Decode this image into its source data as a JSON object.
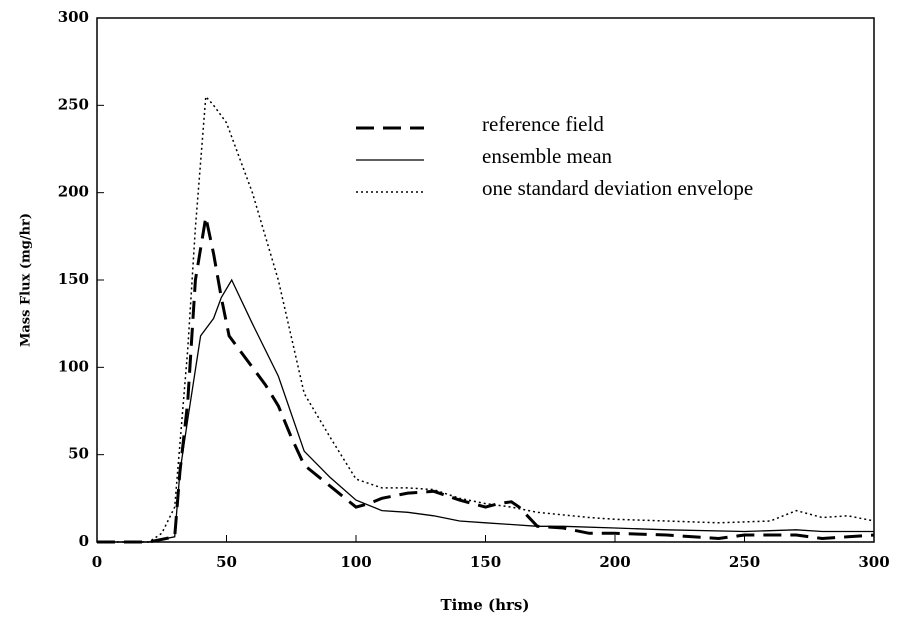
{
  "chart_data": {
    "type": "line",
    "x_label": "Time (hrs)",
    "y_label": "Mass Flux (mg/hr)",
    "xlim": [
      0,
      300
    ],
    "xticks": [
      0,
      50,
      100,
      150,
      200,
      250,
      300
    ],
    "ylim": [
      0,
      300
    ],
    "yticks": [
      0,
      50,
      100,
      150,
      200,
      250,
      300
    ],
    "grid": false,
    "series": [
      {
        "name": "reference field",
        "color": "#000000",
        "style": "dashed",
        "x": [
          0,
          20,
          30,
          32,
          35,
          38,
          42,
          45,
          48,
          51,
          55,
          60,
          65,
          70,
          75,
          80,
          90,
          100,
          105,
          110,
          120,
          130,
          140,
          150,
          155,
          160,
          163,
          170,
          180,
          190,
          200,
          220,
          240,
          250,
          260,
          270,
          280,
          290,
          300
        ],
        "values": [
          0,
          0,
          3,
          40,
          80,
          150,
          186,
          165,
          140,
          118,
          110,
          100,
          90,
          78,
          60,
          44,
          32,
          20,
          22,
          25,
          28,
          29,
          24,
          20,
          22,
          23,
          20,
          9,
          8,
          5,
          5,
          4,
          2,
          4,
          4,
          4,
          2,
          3,
          4
        ]
      },
      {
        "name": "ensemble mean",
        "color": "#000000",
        "style": "solid",
        "x": [
          0,
          20,
          30,
          32,
          35,
          40,
          45,
          48,
          52,
          60,
          70,
          80,
          90,
          100,
          110,
          120,
          130,
          140,
          150,
          160,
          170,
          180,
          200,
          220,
          250,
          270,
          280,
          300
        ],
        "values": [
          0,
          0,
          3,
          40,
          70,
          118,
          128,
          140,
          150,
          125,
          95,
          52,
          37,
          24,
          18,
          17,
          15,
          12,
          11,
          10,
          9,
          9,
          8,
          7,
          6,
          7,
          6,
          6
        ]
      },
      {
        "name": "one standard deviation envelope",
        "color": "#000000",
        "style": "dotted",
        "x": [
          0,
          20,
          25,
          30,
          35,
          38,
          42,
          45,
          50,
          55,
          60,
          70,
          80,
          90,
          100,
          110,
          120,
          130,
          140,
          150,
          160,
          170,
          190,
          200,
          220,
          240,
          260,
          270,
          280,
          290,
          300
        ],
        "values": [
          0,
          0,
          5,
          20,
          110,
          180,
          255,
          250,
          240,
          220,
          200,
          150,
          85,
          60,
          36,
          31,
          31,
          30,
          25,
          22,
          20,
          17,
          14,
          13,
          12,
          11,
          12,
          18,
          14,
          15,
          12
        ]
      }
    ]
  }
}
